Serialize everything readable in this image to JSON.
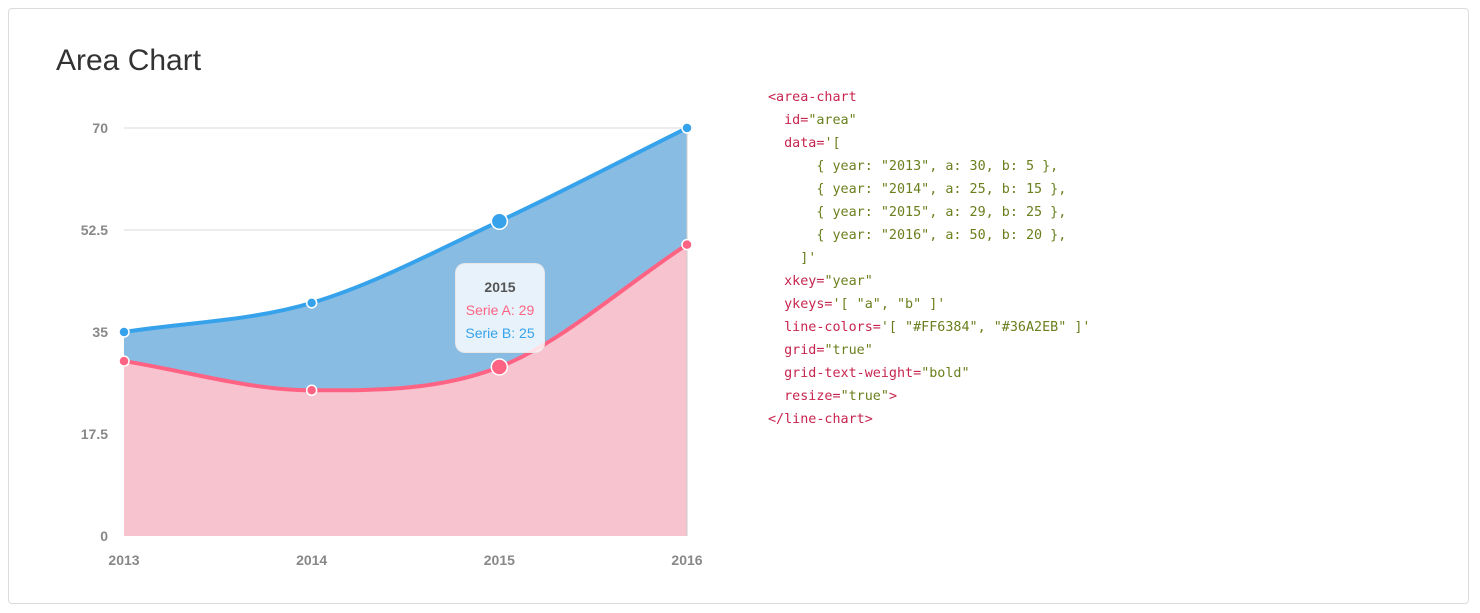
{
  "page": {
    "title": "Area Chart"
  },
  "chart_data": {
    "type": "area",
    "title": "Area Chart",
    "categories": [
      "2013",
      "2014",
      "2015",
      "2016"
    ],
    "series": [
      {
        "name": "Serie A",
        "key": "a",
        "color": "#FF6384",
        "fill": "#F7C3CF",
        "values": [
          30,
          25,
          29,
          50
        ]
      },
      {
        "name": "Serie B",
        "key": "b",
        "color": "#36A2EB",
        "fill": "#88BCE3",
        "values": [
          5,
          15,
          25,
          20
        ]
      }
    ],
    "stacked": true,
    "yticks": [
      0,
      17.5,
      35,
      52.5,
      70
    ],
    "ytick_labels": [
      "0",
      "17.5",
      "35",
      "52.5",
      "70"
    ],
    "ylim": [
      0,
      70
    ],
    "grid": true,
    "grid_color": "#d9d9d9",
    "hover": {
      "category": "2015",
      "rows": [
        "Serie A: 29",
        "Serie B: 25"
      ]
    }
  },
  "code_lines": [
    [
      {
        "t": "<area-chart",
        "c": "tag"
      }
    ],
    [
      {
        "t": "  id=",
        "c": "attr"
      },
      {
        "t": "\"area\"",
        "c": "val"
      }
    ],
    [
      {
        "t": "  data=",
        "c": "attr"
      },
      {
        "t": "'[",
        "c": "val"
      }
    ],
    [
      {
        "t": "      { year: \"2013\", a: 30, b: 5 },",
        "c": "val"
      }
    ],
    [
      {
        "t": "      { year: \"2014\", a: 25, b: 15 },",
        "c": "val"
      }
    ],
    [
      {
        "t": "      { year: \"2015\", a: 29, b: 25 },",
        "c": "val"
      }
    ],
    [
      {
        "t": "      { year: \"2016\", a: 50, b: 20 },",
        "c": "val"
      }
    ],
    [
      {
        "t": "    ]'",
        "c": "val"
      }
    ],
    [
      {
        "t": "  xkey=",
        "c": "attr"
      },
      {
        "t": "\"year\"",
        "c": "val"
      }
    ],
    [
      {
        "t": "  ykeys=",
        "c": "attr"
      },
      {
        "t": "'[ \"a\", \"b\" ]'",
        "c": "val"
      }
    ],
    [
      {
        "t": "  line-colors=",
        "c": "attr"
      },
      {
        "t": "'[ \"#FF6384\", \"#36A2EB\" ]'",
        "c": "val"
      }
    ],
    [
      {
        "t": "  grid=",
        "c": "attr"
      },
      {
        "t": "\"true\"",
        "c": "val"
      }
    ],
    [
      {
        "t": "  grid-text-weight=",
        "c": "attr"
      },
      {
        "t": "\"bold\"",
        "c": "val"
      }
    ],
    [
      {
        "t": "  resize=",
        "c": "attr"
      },
      {
        "t": "\"true\"",
        "c": "val"
      },
      {
        "t": ">",
        "c": "tag"
      }
    ],
    [
      {
        "t": "</line-chart>",
        "c": "tag"
      }
    ]
  ]
}
